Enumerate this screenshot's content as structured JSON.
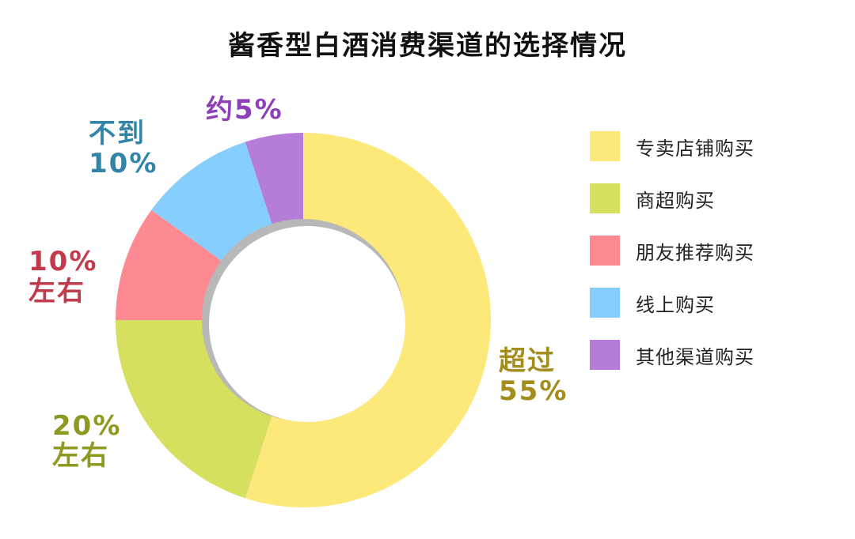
{
  "chart_data": {
    "type": "pie",
    "title": "酱香型白酒消费渠道的选择情况",
    "categories": [
      "专卖店铺购买",
      "商超购买",
      "朋友推荐购买",
      "线上购买",
      "其他渠道购买"
    ],
    "values": [
      55,
      20,
      10,
      10,
      5
    ],
    "colors": [
      "#FDE87A",
      "#D4E05E",
      "#FD8A93",
      "#86CFFC",
      "#B57CD8"
    ],
    "label_colors": [
      "#A38E1D",
      "#8E9A1F",
      "#C23B4C",
      "#3385A8",
      "#8E3FB8"
    ],
    "data_labels": [
      {
        "line1": "超过",
        "line2": "55%"
      },
      {
        "line1": "20%",
        "line2": "左右"
      },
      {
        "line1": "10%",
        "line2": "左右"
      },
      {
        "line1": "不到",
        "line2": "10%"
      },
      {
        "line1": "约5%",
        "line2": ""
      }
    ],
    "legend_position": "right"
  }
}
